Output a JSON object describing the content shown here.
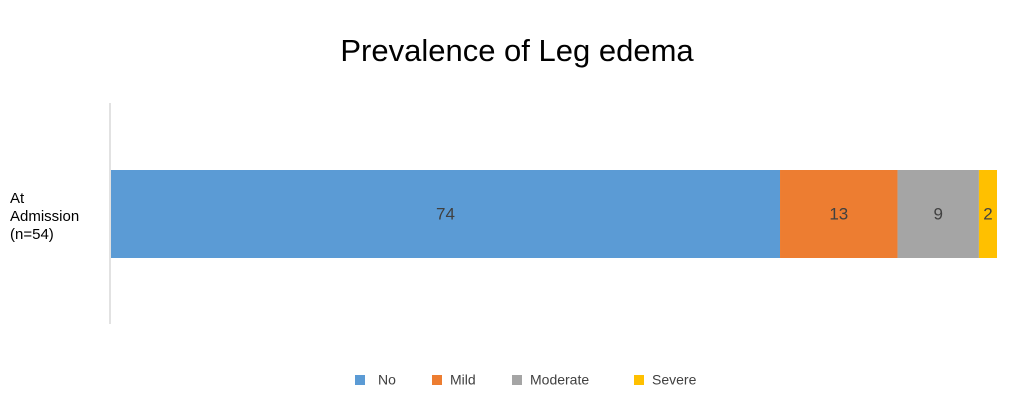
{
  "chart_data": {
    "type": "bar",
    "orientation": "horizontal",
    "stacked": true,
    "title": "Prevalence of Leg edema",
    "categories": [
      "At Admission (n=54)"
    ],
    "series": [
      {
        "name": "No",
        "color": "#5b9bd5",
        "values": [
          74
        ]
      },
      {
        "name": "Mild",
        "color": "#ed7d31",
        "values": [
          13
        ]
      },
      {
        "name": "Moderate",
        "color": "#a5a5a5",
        "values": [
          9
        ]
      },
      {
        "name": "Severe",
        "color": "#ffc000",
        "values": [
          2
        ]
      }
    ],
    "legend": "bottom"
  }
}
